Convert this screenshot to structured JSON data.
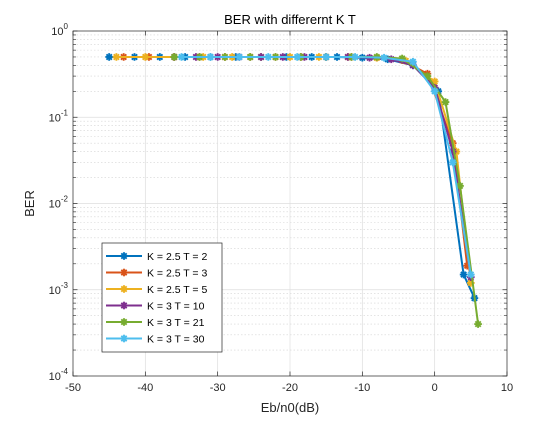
{
  "chart_data": {
    "type": "line",
    "title": "BER with differernt K T",
    "xlabel": "Eb/n0(dB)",
    "ylabel": "BER",
    "xlim": [
      -50,
      10
    ],
    "ylim": [
      0.0001,
      1
    ],
    "yscale": "log",
    "grid": true,
    "minor_grid": true,
    "legend_position": "bottom-left",
    "xticks": [
      {
        "value": -50,
        "label": "-50"
      },
      {
        "value": -40,
        "label": "-40"
      },
      {
        "value": -30,
        "label": "-30"
      },
      {
        "value": -20,
        "label": "-20"
      },
      {
        "value": -10,
        "label": "-10"
      },
      {
        "value": 0,
        "label": "0"
      },
      {
        "value": 10,
        "label": "10"
      }
    ],
    "yticks": [
      {
        "value": 1,
        "base": "10",
        "exp": "0"
      },
      {
        "value": 0.1,
        "base": "10",
        "exp": "-1"
      },
      {
        "value": 0.01,
        "base": "10",
        "exp": "-2"
      },
      {
        "value": 0.001,
        "base": "10",
        "exp": "-3"
      },
      {
        "value": 0.0001,
        "base": "10",
        "exp": "-4"
      }
    ],
    "series": [
      {
        "name": "K = 2.5 T = 2",
        "color": "#0072BD",
        "x": [
          -45,
          -41.5,
          -38,
          -34.5,
          -31,
          -27.5,
          -24,
          -20.5,
          -17,
          -13.5,
          -10,
          -6.5,
          -3,
          0.5,
          4,
          5.5
        ],
        "y": [
          0.5,
          0.5,
          0.5,
          0.5,
          0.5,
          0.5,
          0.5,
          0.5,
          0.5,
          0.5,
          0.49,
          0.47,
          0.4,
          0.2,
          0.0015,
          0.0008
        ]
      },
      {
        "name": "K = 2.5 T = 3",
        "color": "#D95319",
        "x": [
          -43,
          -39.5,
          -36,
          -32.5,
          -29,
          -25.5,
          -22,
          -18.5,
          -15,
          -11.5,
          -8,
          -4.5,
          -1,
          2.5,
          4.5
        ],
        "y": [
          0.5,
          0.5,
          0.5,
          0.5,
          0.5,
          0.5,
          0.5,
          0.5,
          0.5,
          0.5,
          0.49,
          0.46,
          0.32,
          0.05,
          0.0019
        ]
      },
      {
        "name": "K = 2.5 T = 5",
        "color": "#EDB120",
        "x": [
          -44,
          -40,
          -36,
          -32,
          -28,
          -24,
          -20,
          -16,
          -12,
          -8,
          -4,
          0,
          3,
          5
        ],
        "y": [
          0.5,
          0.5,
          0.5,
          0.5,
          0.5,
          0.5,
          0.5,
          0.5,
          0.5,
          0.49,
          0.45,
          0.26,
          0.04,
          0.0012
        ]
      },
      {
        "name": "K = 3 T = 10",
        "color": "#7E2F8E",
        "x": [
          -36,
          -33,
          -30,
          -27,
          -24,
          -21,
          -18,
          -15,
          -12,
          -9,
          -6,
          -3,
          0,
          2.5,
          5
        ],
        "y": [
          0.5,
          0.5,
          0.5,
          0.5,
          0.5,
          0.5,
          0.5,
          0.5,
          0.5,
          0.49,
          0.47,
          0.4,
          0.22,
          0.04,
          0.0014
        ]
      },
      {
        "name": "K = 3 T = 21",
        "color": "#77AC30",
        "x": [
          -36,
          -32.5,
          -29,
          -25.5,
          -22,
          -18.5,
          -15,
          -11.5,
          -8,
          -4.5,
          -1,
          1.5,
          3.5,
          6
        ],
        "y": [
          0.5,
          0.5,
          0.5,
          0.5,
          0.5,
          0.5,
          0.5,
          0.5,
          0.5,
          0.48,
          0.3,
          0.15,
          0.016,
          0.0004
        ]
      },
      {
        "name": "K = 3 T = 30",
        "color": "#4DBEEE",
        "x": [
          -35,
          -31,
          -27,
          -23,
          -19,
          -15,
          -11,
          -7,
          -3,
          0,
          2.5,
          5
        ],
        "y": [
          0.5,
          0.5,
          0.5,
          0.5,
          0.5,
          0.5,
          0.5,
          0.49,
          0.44,
          0.2,
          0.03,
          0.0015
        ]
      }
    ]
  }
}
